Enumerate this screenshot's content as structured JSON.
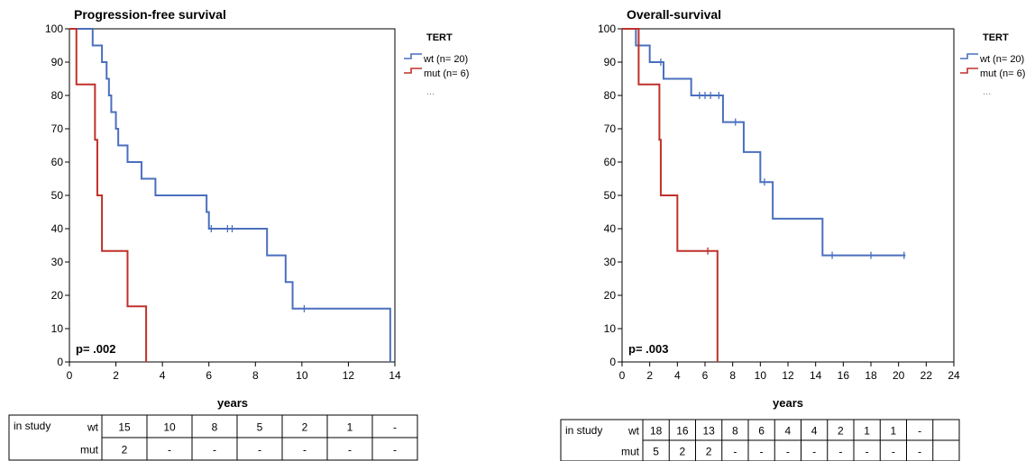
{
  "chart_data": [
    {
      "type": "line",
      "title": "Progression-free survival",
      "xlabel": "years",
      "ylabel": "",
      "xlim": [
        0,
        14
      ],
      "ylim": [
        0,
        100
      ],
      "x_ticks": [
        "0",
        "2",
        "4",
        "6",
        "8",
        "10",
        "12",
        "14"
      ],
      "y_ticks": [
        "0",
        "10",
        "20",
        "30",
        "40",
        "50",
        "60",
        "70",
        "80",
        "90",
        "100"
      ],
      "annotation": "p= .002",
      "legend": {
        "title": "TERT",
        "position": "right",
        "more": "..."
      },
      "series": [
        {
          "name": "wt (n= 20)",
          "color": "#4a6fbe",
          "steps": [
            [
              0,
              100
            ],
            [
              1.0,
              95
            ],
            [
              1.4,
              90
            ],
            [
              1.6,
              85
            ],
            [
              1.7,
              80
            ],
            [
              1.8,
              75
            ],
            [
              2.0,
              70
            ],
            [
              2.1,
              65
            ],
            [
              2.5,
              60
            ],
            [
              3.1,
              55
            ],
            [
              3.7,
              50
            ],
            [
              5.9,
              45
            ],
            [
              6.0,
              40
            ],
            [
              8.5,
              32
            ],
            [
              9.3,
              24
            ],
            [
              9.6,
              16
            ],
            [
              13.8,
              0
            ]
          ],
          "end": 13.8,
          "censored": [
            [
              6.1,
              40
            ],
            [
              6.8,
              40
            ],
            [
              7.0,
              40
            ],
            [
              10.1,
              16
            ]
          ]
        },
        {
          "name": "mut (n= 6)",
          "color": "#c0302a",
          "steps": [
            [
              0,
              100
            ],
            [
              0.3,
              83.3
            ],
            [
              1.1,
              66.7
            ],
            [
              1.2,
              50
            ],
            [
              1.4,
              33.3
            ],
            [
              2.5,
              16.7
            ],
            [
              3.3,
              0
            ]
          ],
          "end": 3.3,
          "censored": []
        }
      ],
      "risk_table": {
        "label": "in study",
        "rows": [
          {
            "group": "wt",
            "values": [
              "15",
              "10",
              "8",
              "5",
              "2",
              "1",
              "-"
            ]
          },
          {
            "group": "mut",
            "values": [
              "2",
              "-",
              "-",
              "-",
              "-",
              "-",
              "-"
            ]
          }
        ]
      }
    },
    {
      "type": "line",
      "title": "Overall-survival",
      "xlabel": "years",
      "ylabel": "",
      "xlim": [
        0,
        24
      ],
      "ylim": [
        0,
        100
      ],
      "x_ticks": [
        "0",
        "2",
        "4",
        "6",
        "8",
        "10",
        "12",
        "14",
        "16",
        "18",
        "20",
        "22",
        "24"
      ],
      "y_ticks": [
        "0",
        "10",
        "20",
        "30",
        "40",
        "50",
        "60",
        "70",
        "80",
        "90",
        "100"
      ],
      "annotation": "p= .003",
      "legend": {
        "title": "TERT",
        "position": "right",
        "more": "..."
      },
      "series": [
        {
          "name": "wt (n= 20)",
          "color": "#4a6fbe",
          "steps": [
            [
              0,
              100
            ],
            [
              1.0,
              95
            ],
            [
              2.0,
              90
            ],
            [
              3.0,
              85
            ],
            [
              5.0,
              80
            ],
            [
              7.3,
              72
            ],
            [
              8.8,
              63
            ],
            [
              10.0,
              54
            ],
            [
              10.9,
              43
            ],
            [
              14.5,
              32
            ]
          ],
          "end": 20.5,
          "censored": [
            [
              2.8,
              90
            ],
            [
              5.6,
              80
            ],
            [
              6.0,
              80
            ],
            [
              6.4,
              80
            ],
            [
              7.0,
              80
            ],
            [
              8.2,
              72
            ],
            [
              10.3,
              54
            ],
            [
              15.2,
              32
            ],
            [
              18.0,
              32
            ],
            [
              20.4,
              32
            ]
          ]
        },
        {
          "name": "mut (n= 6)",
          "color": "#c0302a",
          "steps": [
            [
              0,
              100
            ],
            [
              1.2,
              83.3
            ],
            [
              2.7,
              66.7
            ],
            [
              2.8,
              50
            ],
            [
              4.0,
              33.3
            ],
            [
              6.9,
              0
            ]
          ],
          "end": 6.9,
          "censored": [
            [
              6.2,
              33.3
            ]
          ]
        }
      ],
      "risk_table": {
        "label": "in study",
        "rows": [
          {
            "group": "wt",
            "values": [
              "18",
              "16",
              "13",
              "8",
              "6",
              "4",
              "4",
              "2",
              "1",
              "1",
              "-",
              ""
            ]
          },
          {
            "group": "mut",
            "values": [
              "5",
              "2",
              "2",
              "-",
              "-",
              "-",
              "-",
              "-",
              "-",
              "-",
              "-",
              ""
            ]
          }
        ]
      }
    }
  ]
}
